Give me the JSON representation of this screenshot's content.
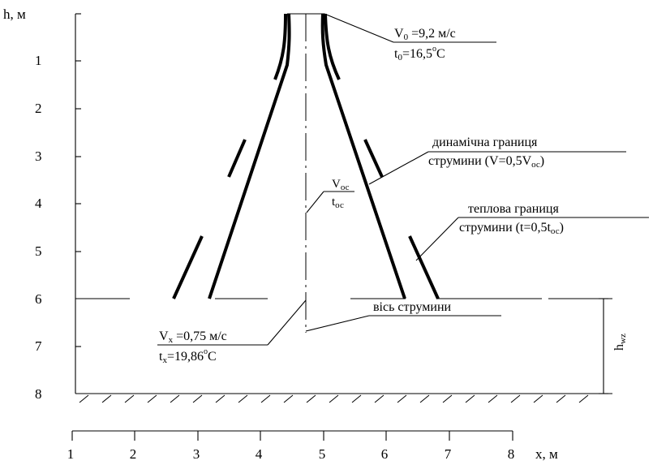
{
  "axes": {
    "y_title": "h, м",
    "y_ticks": [
      "1",
      "2",
      "3",
      "4",
      "5",
      "6",
      "7",
      "8"
    ],
    "x_title": "x, м",
    "x_ticks": [
      "1",
      "2",
      "3",
      "4",
      "5",
      "6",
      "7",
      "8"
    ]
  },
  "outlet": {
    "v_label": "V",
    "v_sub": "0",
    "v_value": " =9,2 м/с",
    "t_label": "t",
    "t_sub": "0",
    "t_value": "=16,5",
    "t_unit": "C",
    "degree": "o"
  },
  "dynamic_boundary": {
    "line1": "динамічна границя",
    "line2_prefix": "струмини (V=0,5V",
    "line2_sub": "ос",
    "line2_suffix": ")"
  },
  "axis_velocity": {
    "v_label": "V",
    "v_sub": "ос",
    "t_label": "t",
    "t_sub": "ос"
  },
  "thermal_boundary": {
    "line1": "теплова границя",
    "line2_prefix": "струмини (t=0,5t",
    "line2_sub": "ос",
    "line2_suffix": ")"
  },
  "jet_axis": {
    "label": "вісь струмини"
  },
  "zone": {
    "v_label": "V",
    "v_sub": "x",
    "v_value": " =0,75 м/с",
    "t_label": "t",
    "t_sub": "x",
    "t_value": "=19,86",
    "t_unit": "C",
    "degree": "o"
  },
  "work_zone": {
    "h_label": "h",
    "h_sub": "wz"
  }
}
